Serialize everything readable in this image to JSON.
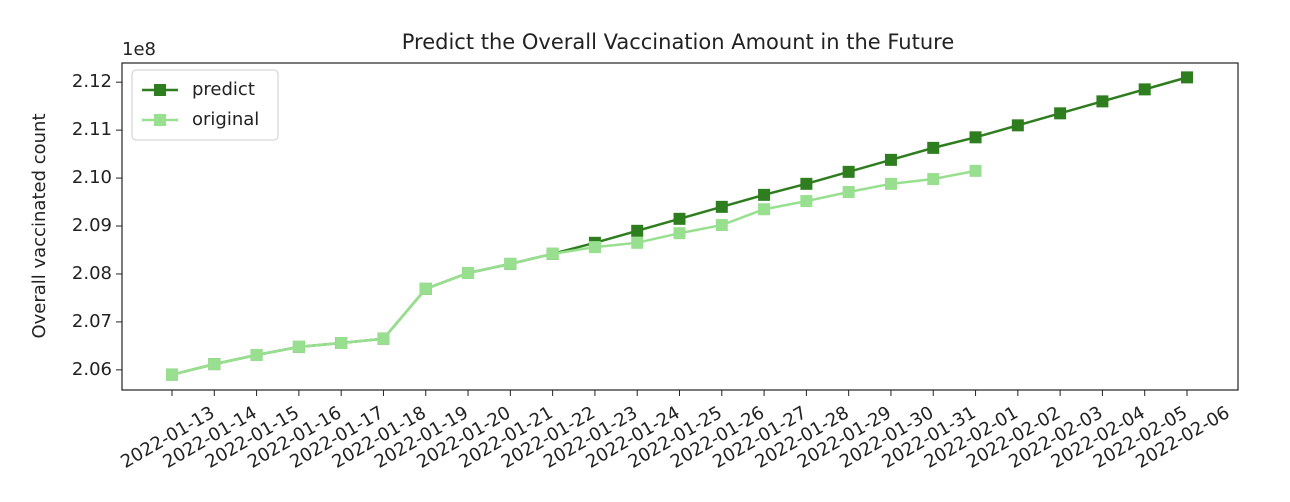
{
  "chart_data": {
    "type": "line",
    "title": "Predict the Overall Vaccination Amount in the Future",
    "y_label": "Overall vaccinated count",
    "y_offset_label": "1e8",
    "categories": [
      "2022-01-13",
      "2022-01-14",
      "2022-01-15",
      "2022-01-16",
      "2022-01-17",
      "2022-01-18",
      "2022-01-19",
      "2022-01-20",
      "2022-01-21",
      "2022-01-22",
      "2022-01-23",
      "2022-01-24",
      "2022-01-25",
      "2022-01-26",
      "2022-01-27",
      "2022-01-28",
      "2022-01-29",
      "2022-01-30",
      "2022-01-31",
      "2022-02-01",
      "2022-02-02",
      "2022-02-03",
      "2022-02-04",
      "2022-02-05",
      "2022-02-06"
    ],
    "series": [
      {
        "name": "predict",
        "color": "#2e7d1f",
        "values": [
          2.059,
          2.0612,
          2.0631,
          2.0648,
          2.0656,
          2.0665,
          2.0769,
          2.0802,
          2.0821,
          2.0842,
          2.0865,
          2.089,
          2.0915,
          2.094,
          2.0965,
          2.0988,
          2.1013,
          2.1038,
          2.1063,
          2.1085,
          2.111,
          2.1135,
          2.116,
          2.1185,
          2.121
        ]
      },
      {
        "name": "original",
        "color": "#98e08f",
        "values": [
          2.059,
          2.0612,
          2.0631,
          2.0648,
          2.0656,
          2.0665,
          2.0769,
          2.0802,
          2.0821,
          2.0842,
          2.0856,
          2.0865,
          2.0885,
          2.0902,
          2.0935,
          2.0952,
          2.0971,
          2.0988,
          2.0998,
          2.1015,
          null,
          null,
          null,
          null,
          null
        ]
      }
    ],
    "ylim": [
      2.0558,
      2.124
    ],
    "yticks": [
      2.06,
      2.07,
      2.08,
      2.09,
      {
        "value": 2.1,
        "label": "2.10"
      },
      2.11,
      2.12
    ],
    "legend": "upper left",
    "marker": "square"
  }
}
